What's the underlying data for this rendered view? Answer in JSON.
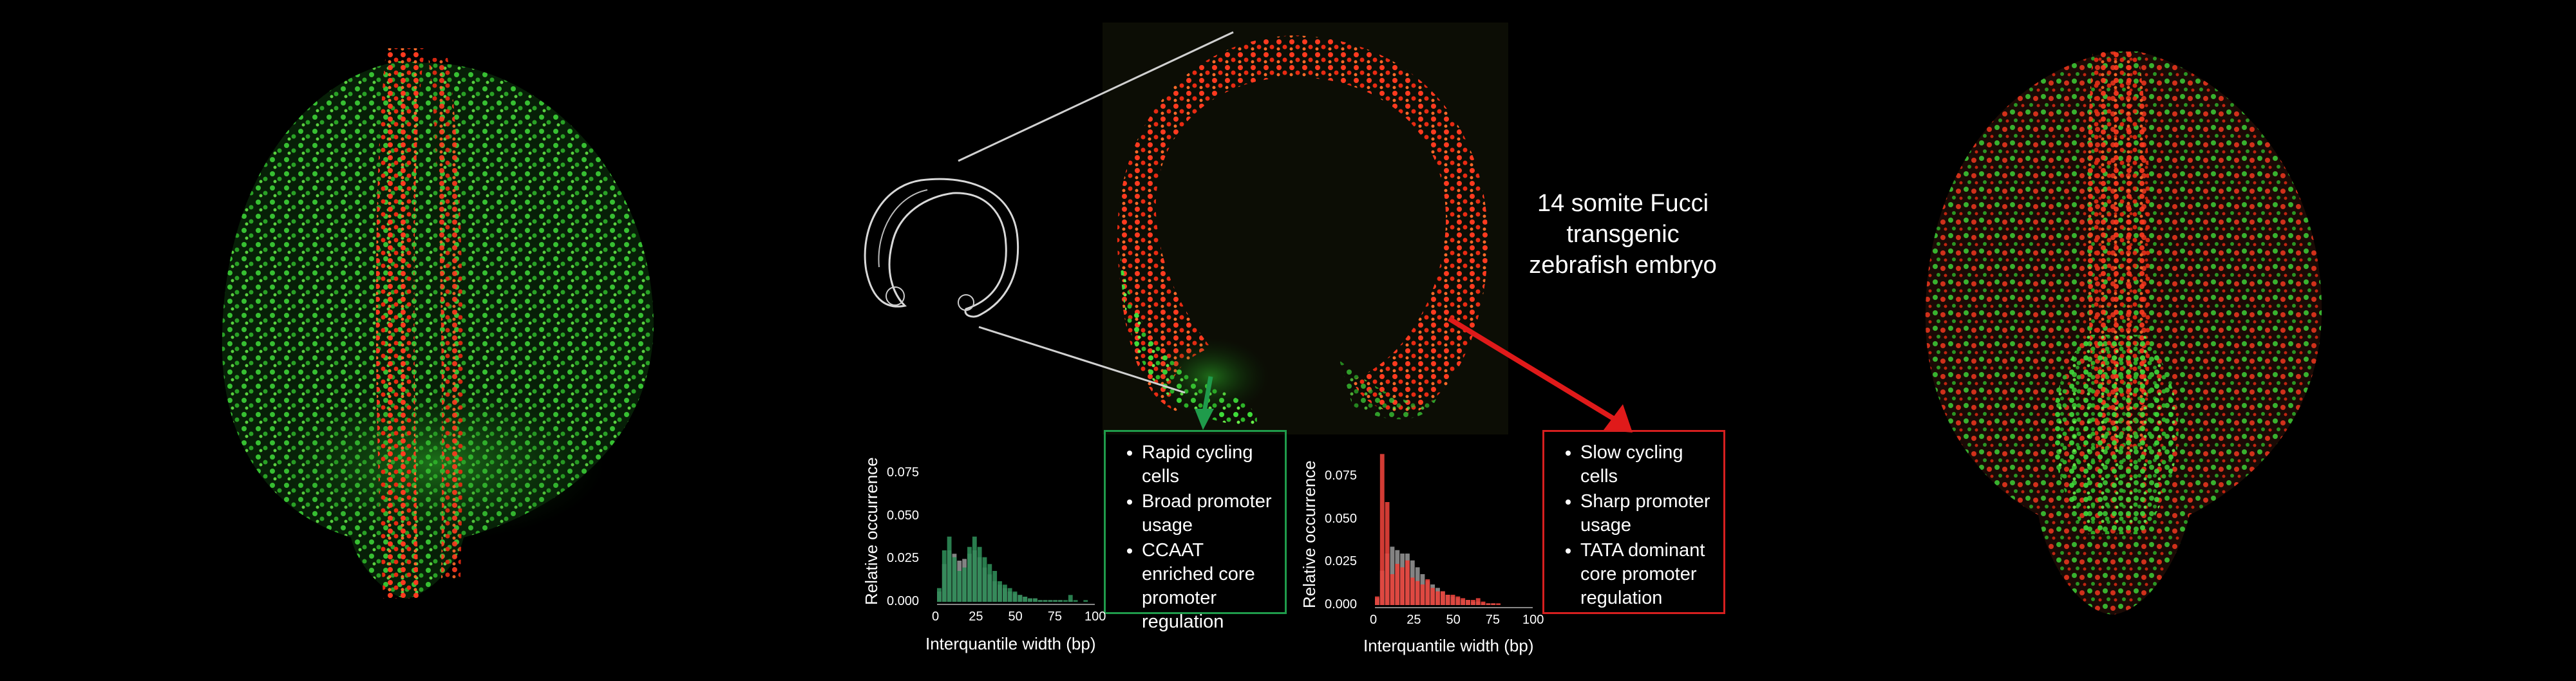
{
  "caption": {
    "lines": [
      "14 somite Fucci",
      "transgenic",
      "zebrafish embryo"
    ]
  },
  "green_box": {
    "items": [
      "Rapid cycling cells",
      "Broad promoter usage",
      "CCAAT enriched core promoter regulation"
    ]
  },
  "red_box": {
    "items": [
      "Slow cycling cells",
      "Sharp promoter usage",
      "TATA dominant core promoter regulation"
    ]
  },
  "colors": {
    "green": "#1f9b4b",
    "red": "#d61f1f",
    "hist_green": "#2e8b57",
    "hist_red": "#e8413a",
    "hist_grey": "#9a9a9a"
  },
  "chart_data": [
    {
      "type": "bar",
      "xlabel": "Interquantile width (bp)",
      "ylabel": "Relative occurrence",
      "x_ticks": [
        "0",
        "25",
        "50",
        "75",
        "100"
      ],
      "y_ticks": [
        "0.000",
        "0.025",
        "0.050",
        "0.075"
      ],
      "xlim": [
        0,
        100
      ],
      "ylim": [
        0,
        0.09
      ],
      "bin_width": 3.2,
      "series": [
        {
          "values": [
            0.008,
            0.03,
            0.038,
            0.026,
            0.018,
            0.02,
            0.032,
            0.038,
            0.032,
            0.026,
            0.022,
            0.018,
            0.012,
            0.01,
            0.008,
            0.006,
            0.004,
            0.003,
            0.002,
            0.002,
            0.001,
            0.001,
            0.001,
            0.001,
            0.001,
            0.001,
            0.004,
            0.001,
            0.0,
            0.001
          ]
        },
        {
          "values": [
            0.006,
            0.022,
            0.03,
            0.028,
            0.024,
            0.025,
            0.028,
            0.03,
            0.026,
            0.02,
            0.016,
            0.012,
            0.01,
            0.008,
            0.006,
            0.005,
            0.004,
            0.003,
            0.002,
            0.002,
            0.001,
            0.001,
            0.001,
            0.001,
            0.001,
            0.0,
            0.001,
            0.0,
            0.0,
            0.0
          ]
        }
      ]
    },
    {
      "type": "bar",
      "xlabel": "Interquantile width (bp)",
      "ylabel": "Relative occurrence",
      "x_ticks": [
        "0",
        "25",
        "50",
        "75",
        "100"
      ],
      "y_ticks": [
        "0.000",
        "0.025",
        "0.050",
        "0.075"
      ],
      "xlim": [
        0,
        100
      ],
      "ylim": [
        0,
        0.09
      ],
      "bin_width": 3.2,
      "series": [
        {
          "values": [
            0.005,
            0.088,
            0.06,
            0.018,
            0.024,
            0.022,
            0.026,
            0.016,
            0.014,
            0.012,
            0.015,
            0.01,
            0.008,
            0.008,
            0.006,
            0.006,
            0.005,
            0.004,
            0.003,
            0.003,
            0.004,
            0.002,
            0.001,
            0.001,
            0.001,
            0.0,
            0.0,
            0.0,
            0.0,
            0.0
          ]
        },
        {
          "values": [
            0.004,
            0.02,
            0.03,
            0.034,
            0.032,
            0.03,
            0.03,
            0.026,
            0.022,
            0.018,
            0.014,
            0.012,
            0.01,
            0.008,
            0.006,
            0.005,
            0.004,
            0.003,
            0.003,
            0.002,
            0.002,
            0.001,
            0.001,
            0.001,
            0.0,
            0.0,
            0.0,
            0.0,
            0.0,
            0.0
          ]
        }
      ]
    }
  ]
}
